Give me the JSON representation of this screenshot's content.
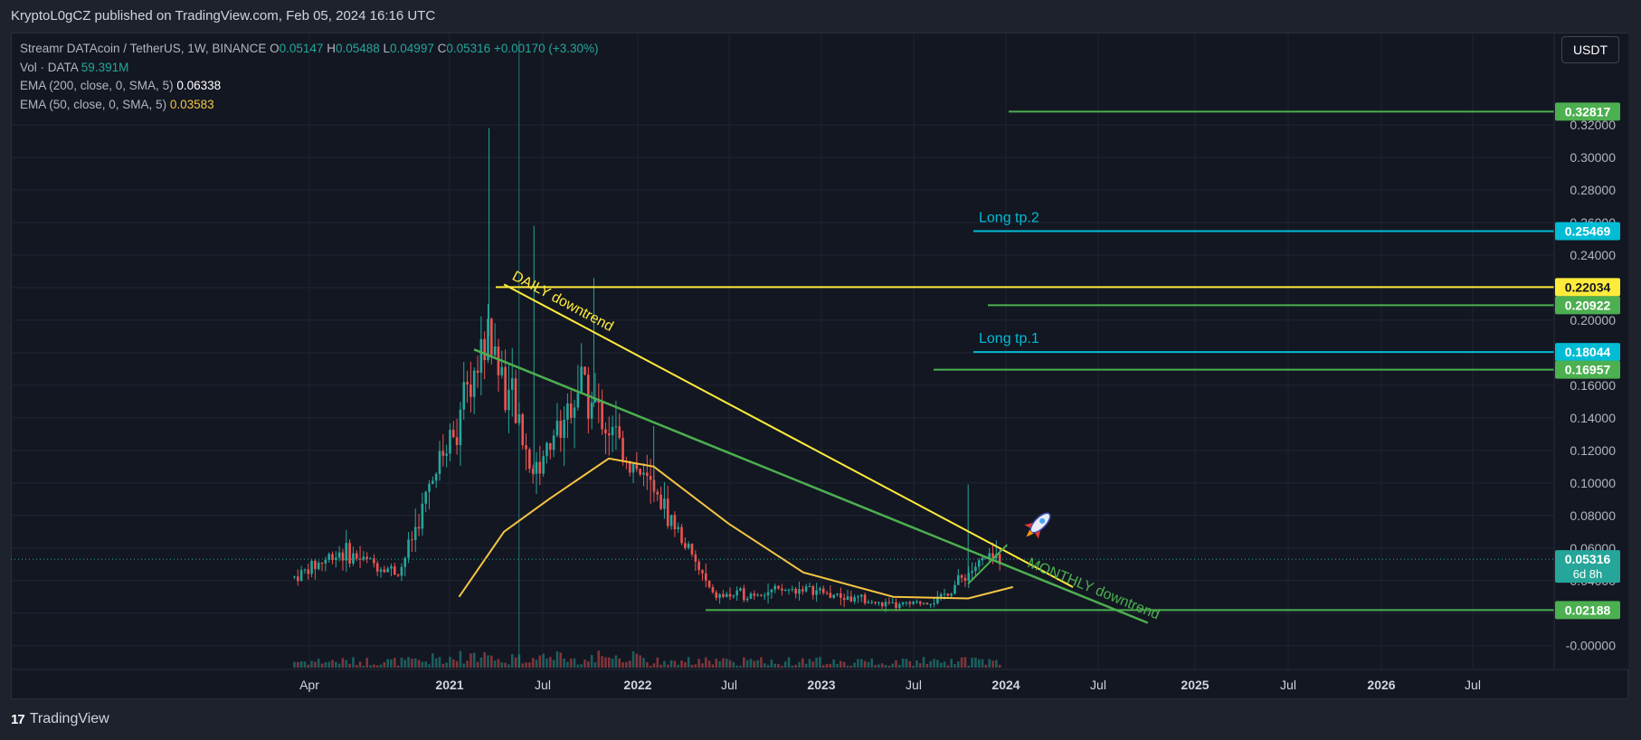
{
  "header": {
    "publish_line": "KryptoL0gCZ published on TradingView.com, Feb 05, 2024 16:16 UTC"
  },
  "legend": {
    "symbol": "Streamr DATAcoin / TetherUS, 1W, BINANCE",
    "o_label": "O",
    "o_value": "0.05147",
    "h_label": "H",
    "h_value": "0.05488",
    "l_label": "L",
    "l_value": "0.04997",
    "c_label": "C",
    "c_value": "0.05316",
    "change": "+0.00170 (+3.30%)",
    "vol_label": "Vol · DATA",
    "vol_value": "59.391M",
    "ema200_label": "EMA (200, close, 0, SMA, 5)",
    "ema200_value": "0.06338",
    "ema50_label": "EMA (50, close, 0, SMA, 5)",
    "ema50_value": "0.03583"
  },
  "currency_button": "USDT",
  "footer": {
    "brand": "TradingView"
  },
  "chart_data": {
    "type": "candlestick",
    "x_axis_labels": [
      "Apr",
      "2021",
      "Jul",
      "2022",
      "Jul",
      "2023",
      "Jul",
      "2024",
      "Jul",
      "2025",
      "Jul",
      "2026",
      "Jul"
    ],
    "y_axis_ticks": [
      "0.32000",
      "0.30000",
      "0.28000",
      "0.26000",
      "0.24000",
      "0.22000",
      "0.20000",
      "0.18000",
      "0.16000",
      "0.14000",
      "0.12000",
      "0.10000",
      "0.08000",
      "0.06000",
      "0.04000",
      "0.02000",
      "-0.00000"
    ],
    "ylim": [
      -0.0035,
      0.3395
    ],
    "price_levels": [
      {
        "value": 0.32817,
        "label": "0.32817",
        "color": "#4caf50",
        "text": ""
      },
      {
        "value": 0.25469,
        "label": "0.25469",
        "color": "#00bcd4",
        "text": "Long tp.2"
      },
      {
        "value": 0.22034,
        "label": "0.22034",
        "color": "#ffeb3b",
        "text": ""
      },
      {
        "value": 0.20922,
        "label": "0.20922",
        "color": "#4caf50",
        "text": ""
      },
      {
        "value": 0.18044,
        "label": "0.18044",
        "color": "#00bcd4",
        "text": "Long tp.1"
      },
      {
        "value": 0.16957,
        "label": "0.16957",
        "color": "#4caf50",
        "text": ""
      },
      {
        "value": 0.02188,
        "label": "0.02188",
        "color": "#4caf50",
        "text": ""
      }
    ],
    "current_price": {
      "value": 0.05316,
      "label": "0.05316",
      "countdown": "6d 8h",
      "color": "#26a69a"
    },
    "trendlines": [
      {
        "name": "daily-downtrend",
        "text": "DAILY downtrend",
        "color": "#ffeb3b",
        "from": [
          "2021-05",
          0.222
        ],
        "to": [
          "2024-07",
          0.036
        ]
      },
      {
        "name": "monthly-downtrend",
        "text": "MONTHLY downtrend",
        "color": "#4caf50",
        "from": [
          "2021-03",
          0.182
        ],
        "to": [
          "2024-12",
          0.014
        ]
      }
    ],
    "candles_approx": [
      {
        "period": "2020-03",
        "close": 0.042
      },
      {
        "period": "2020-06",
        "close": 0.058
      },
      {
        "period": "2020-10",
        "close": 0.045
      },
      {
        "period": "2021-01",
        "close": 0.12
      },
      {
        "period": "2021-04",
        "close": 0.19
      },
      {
        "period": "2021-07",
        "close": 0.105
      },
      {
        "period": "2021-10",
        "close": 0.16
      },
      {
        "period": "2022-01",
        "close": 0.12
      },
      {
        "period": "2022-04",
        "close": 0.08
      },
      {
        "period": "2022-07",
        "close": 0.03
      },
      {
        "period": "2023-01",
        "close": 0.035
      },
      {
        "period": "2023-07",
        "close": 0.024
      },
      {
        "period": "2023-10",
        "close": 0.028
      },
      {
        "period": "2024-01",
        "close": 0.053
      }
    ],
    "ema50_approx": [
      {
        "period": "2021-02",
        "value": 0.03
      },
      {
        "period": "2021-05",
        "value": 0.07
      },
      {
        "period": "2021-08",
        "value": 0.09
      },
      {
        "period": "2021-12",
        "value": 0.115
      },
      {
        "period": "2022-03",
        "value": 0.11
      },
      {
        "period": "2022-08",
        "value": 0.075
      },
      {
        "period": "2023-01",
        "value": 0.045
      },
      {
        "period": "2023-07",
        "value": 0.03
      },
      {
        "period": "2023-12",
        "value": 0.029
      },
      {
        "period": "2024-03",
        "value": 0.036
      }
    ],
    "grid": true
  }
}
